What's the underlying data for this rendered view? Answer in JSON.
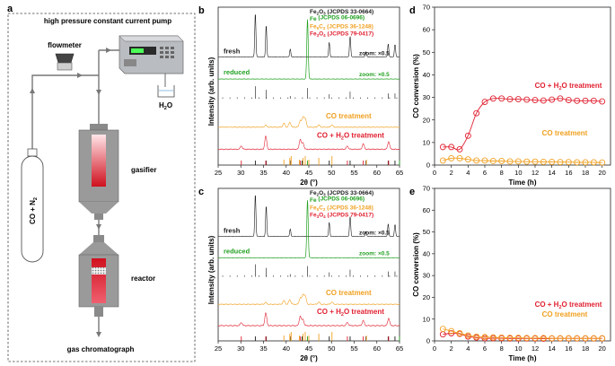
{
  "panel_a": {
    "letter": "a",
    "title": "high pressure constant current pump",
    "flowmeter_label": "flowmeter",
    "cylinder_label": "CO + N",
    "cylinder_label_sub": "2",
    "water_label": "H",
    "water_label_sub": "2",
    "water_label_end": "O",
    "gasifier_label": "gasifier",
    "reactor_label": "reactor",
    "gc_label": "gas chromatograph"
  },
  "colors": {
    "fresh": "#1a1a1a",
    "reduced": "#20a020",
    "co_treatment": "#f0a020",
    "coh2o_treatment": "#e02030",
    "ref_fe2o3": "#1a1a1a",
    "ref_fe": "#20a020",
    "ref_fe5c2": "#f0a020",
    "ref_fe3o4": "#e02030"
  },
  "chart_data": [
    {
      "panel": "b",
      "type": "line",
      "xlabel": "2θ (°)",
      "ylabel": "Intensity (arb. units)",
      "xlim": [
        25,
        65
      ],
      "xticks": [
        25,
        30,
        35,
        40,
        45,
        50,
        55,
        60,
        65
      ],
      "legend": [
        {
          "text": "Fe",
          "sub": "2",
          "text2": "O",
          "sub2": "3",
          "rest": " (JCPDS 33-0664)",
          "color": "#1a1a1a"
        },
        {
          "text": "Fe",
          "sub": "",
          "text2": "",
          "sub2": "",
          "rest": " (JCPDS 06-0696)",
          "color": "#20a020"
        },
        {
          "text": "Fe",
          "sub": "5",
          "text2": "C",
          "sub2": "2",
          "rest": " (JCPDS 36-1248)",
          "color": "#f0a020"
        },
        {
          "text": "Fe",
          "sub": "3",
          "text2": "O",
          "sub2": "4",
          "rest": " (JCPDS 79-0417)",
          "color": "#e02030"
        }
      ],
      "trace_labels": {
        "fresh": "fresh",
        "reduced": "reduced",
        "co": "CO treatment",
        "coh2o": "CO + H",
        "coh2o_sub": "2",
        "coh2o_end": "O treatment",
        "zoom1": "zoom: ×0.5",
        "zoom2": "zoom: ×0.5"
      },
      "ref_fe2o3": [
        24.1,
        33.2,
        35.6,
        40.9,
        43.5,
        49.5,
        54.1,
        57.6,
        62.5,
        64.0
      ],
      "ref_fe": [
        44.7,
        65.0
      ],
      "ref_fe5c2": [
        39.5,
        40.8,
        41.1,
        42.9,
        43.7,
        44.2,
        45.0,
        47.2,
        50.1,
        57.7
      ],
      "ref_fe3o4": [
        30.1,
        35.5,
        43.1,
        53.5,
        57.0,
        62.6
      ]
    },
    {
      "panel": "c",
      "type": "line",
      "xlabel": "2θ (°)",
      "ylabel": "Intensity (arb. units)",
      "xlim": [
        25,
        65
      ],
      "xticks": [
        25,
        30,
        35,
        40,
        45,
        50,
        55,
        60,
        65
      ],
      "legend": [
        {
          "text": "Fe",
          "sub": "2",
          "text2": "O",
          "sub2": "3",
          "rest": " (JCPDS 33-0664)",
          "color": "#1a1a1a"
        },
        {
          "text": "Fe",
          "sub": "",
          "text2": "",
          "sub2": "",
          "rest": " (JCPDS 06-0696)",
          "color": "#20a020"
        },
        {
          "text": "Fe",
          "sub": "5",
          "text2": "C",
          "sub2": "2",
          "rest": " (JCPDS 36-1248)",
          "color": "#f0a020"
        },
        {
          "text": "Fe",
          "sub": "3",
          "text2": "O",
          "sub2": "4",
          "rest": " (JCPDS 79-0417)",
          "color": "#e02030"
        }
      ],
      "trace_labels": {
        "fresh": "fresh",
        "reduced": "reduced",
        "co": "CO treatment",
        "coh2o": "CO + H",
        "coh2o_sub": "2",
        "coh2o_end": "O treatment",
        "zoom1": "zoom: ×0.5",
        "zoom2": "zoom: ×0.5"
      },
      "ref_fe2o3": [
        24.1,
        33.2,
        35.6,
        40.9,
        43.5,
        49.5,
        54.1,
        57.6,
        62.5,
        64.0
      ],
      "ref_fe": [
        44.7,
        65.0
      ],
      "ref_fe5c2": [
        39.5,
        40.8,
        41.1,
        42.9,
        43.7,
        44.2,
        45.0,
        47.2,
        50.1,
        57.7
      ],
      "ref_fe3o4": [
        30.1,
        35.5,
        43.1,
        53.5,
        57.0,
        62.6
      ]
    },
    {
      "panel": "d",
      "type": "line",
      "xlabel": "Time (h)",
      "ylabel": "CO conversion (%)",
      "xlim": [
        0,
        21
      ],
      "ylim": [
        0,
        70
      ],
      "xticks": [
        0,
        2,
        4,
        6,
        8,
        10,
        12,
        14,
        16,
        18,
        20
      ],
      "yticks": [
        0,
        10,
        20,
        30,
        40,
        50,
        60,
        70
      ],
      "series": [
        {
          "name": "CO + H",
          "name_sub": "2",
          "name_end": "O treatment",
          "color": "#e02030",
          "x": [
            1,
            2,
            3,
            4,
            5,
            6,
            7,
            8,
            9,
            10,
            11,
            12,
            13,
            14,
            15,
            16,
            17,
            18,
            19,
            20
          ],
          "y": [
            8,
            8,
            7,
            13,
            23,
            28,
            29.5,
            29.5,
            29.2,
            29.2,
            29.0,
            28.8,
            28.6,
            29.0,
            29.5,
            28.8,
            28.5,
            28.5,
            28.5,
            28.2
          ]
        },
        {
          "name": "CO treatment",
          "name_sub": "",
          "name_end": "",
          "color": "#f0a020",
          "x": [
            1,
            2,
            3,
            4,
            5,
            6,
            7,
            8,
            9,
            10,
            11,
            12,
            13,
            14,
            15,
            16,
            17,
            18,
            19,
            20
          ],
          "y": [
            2,
            3,
            3,
            2.5,
            2,
            2,
            1.8,
            1.8,
            1.6,
            1.6,
            1.5,
            1.5,
            1.4,
            1.4,
            1.3,
            1.3,
            1.2,
            1.2,
            1.2,
            1.1
          ]
        }
      ]
    },
    {
      "panel": "e",
      "type": "line",
      "xlabel": "Time (h)",
      "ylabel": "CO conversion (%)",
      "xlim": [
        0,
        21
      ],
      "ylim": [
        0,
        70
      ],
      "xticks": [
        0,
        2,
        4,
        6,
        8,
        10,
        12,
        14,
        16,
        18,
        20
      ],
      "yticks": [
        0,
        10,
        20,
        30,
        40,
        50,
        60,
        70
      ],
      "series": [
        {
          "name": "CO + H",
          "name_sub": "2",
          "name_end": "O treatment",
          "color": "#e02030",
          "x": [
            1,
            2,
            3,
            4,
            5,
            6,
            7,
            8,
            9,
            10,
            11,
            12,
            13,
            14,
            15,
            16,
            17,
            18,
            19,
            20
          ],
          "y": [
            3,
            3.5,
            3.2,
            2,
            1.5,
            1.2,
            1.2,
            1.2,
            1.1,
            1.1,
            1.1,
            1.1,
            1.0,
            1.1,
            1.1,
            1.1,
            1.1,
            1.1,
            1.1,
            1.1
          ]
        },
        {
          "name": "CO treatment",
          "name_sub": "",
          "name_end": "",
          "color": "#f0a020",
          "x": [
            1,
            2,
            3,
            4,
            5,
            6,
            7,
            8,
            9,
            10,
            11,
            12,
            13,
            14,
            15,
            16,
            17,
            18,
            19,
            20
          ],
          "y": [
            5.5,
            4.5,
            3.5,
            2.5,
            2,
            1.8,
            1.6,
            1.5,
            1.4,
            1.4,
            1.3,
            1.3,
            1.3,
            1.2,
            1.2,
            1.2,
            1.2,
            1.2,
            1.2,
            1.2
          ]
        }
      ]
    }
  ]
}
